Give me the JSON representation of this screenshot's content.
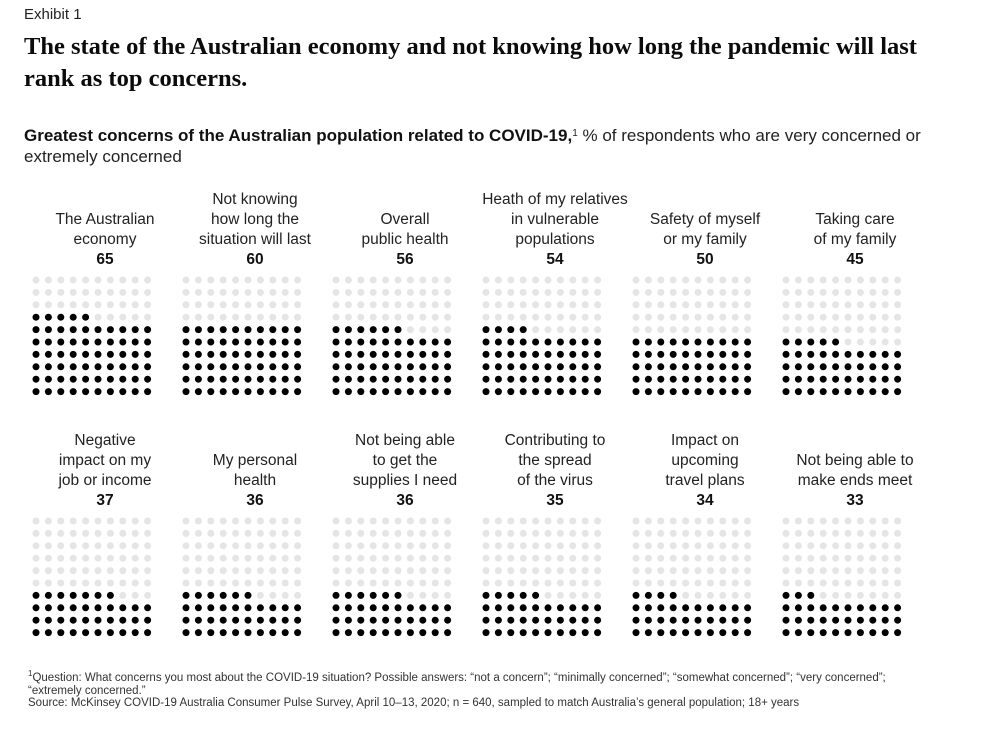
{
  "exhibit_label": "Exhibit 1",
  "headline": "The state of the Australian economy and not knowing how long the pandemic will last rank as top concerns.",
  "subtitle": {
    "bold": "Greatest concerns of the Australian population related to COVID-19,",
    "footnote_marker": "1",
    "rest": " % of respondents who are very concerned or extremely concerned"
  },
  "footnote": {
    "marker": "1",
    "text": "Question: What concerns you most about the COVID-19 situation? Possible answers: “not a concern”; “minimally concerned”; “somewhat concerned”; “very concerned”; “extremely concerned.”"
  },
  "source": "Source: McKinsey COVID-19 Australia Consumer Pulse Survey, April 10–13, 2020; n = 640, sampled to match Australia’s general population; 18+ years",
  "colors": {
    "filled_dot": "#000000",
    "empty_dot": "#e5e5e5",
    "text": "#222222"
  },
  "chart_data": {
    "type": "waffle",
    "unit": "% of respondents who are very concerned or extremely concerned",
    "grid": "10x10 dots, one dot per percentage point, filled from the bottom",
    "categories": [
      "The Australian economy",
      "Not knowing how long the situation will last",
      "Overall public health",
      "Heath of my relatives in vulnerable populations",
      "Safety of myself or my family",
      "Taking care of my family",
      "Negative impact on my job or income",
      "My personal health",
      "Not being able to get the supplies I need",
      "Contributing to the spread of the virus",
      "Impact on upcoming travel plans",
      "Not being able to make ends meet"
    ],
    "label_lines": [
      [
        "The Australian",
        "economy"
      ],
      [
        "Not knowing",
        "how long the",
        "situation will last"
      ],
      [
        "Overall",
        "public health"
      ],
      [
        "Heath of my relatives",
        "in vulnerable",
        "populations"
      ],
      [
        "Safety of myself",
        "or my family"
      ],
      [
        "Taking care",
        "of my family"
      ],
      [
        "Negative",
        "impact on my",
        "job or income"
      ],
      [
        "My personal",
        "health"
      ],
      [
        "Not being able",
        "to get the",
        "supplies I need"
      ],
      [
        "Contributing to",
        "the spread",
        "of the virus"
      ],
      [
        "Impact on",
        "upcoming",
        "travel plans"
      ],
      [
        "Not being able to",
        "make ends meet"
      ]
    ],
    "values": [
      65,
      60,
      56,
      54,
      50,
      45,
      37,
      36,
      36,
      35,
      34,
      33
    ]
  }
}
